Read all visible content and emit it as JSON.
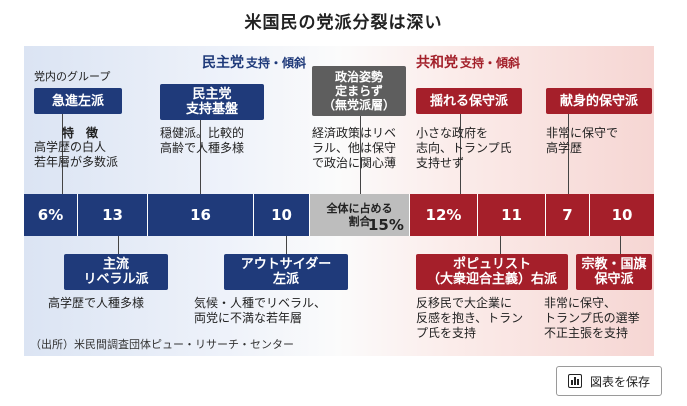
{
  "title": "米国民の党派分裂は深い",
  "parties": {
    "dem": {
      "name": "民主党",
      "sub": "支持・傾斜"
    },
    "rep": {
      "name": "共和党",
      "sub": "支持・傾斜"
    }
  },
  "group_header": "党内のグループ",
  "tokucho_label": "特　徴",
  "groups": {
    "kyushin": {
      "label": "急進左派",
      "desc": "高学歴の白人\n若年層が多数派"
    },
    "shuryu": {
      "label": "主流\nリベラル派",
      "desc": "高学歴で人種多様"
    },
    "kiban": {
      "label": "民主党\n支持基盤",
      "desc": "穏健派。比較的\n高齢で人種多様"
    },
    "outsider": {
      "label": "アウトサイダー\n左派",
      "desc": "気候・人種でリベラル、\n両党に不満な若年層"
    },
    "undecided": {
      "label": "政治姿勢\n定まらず\n（無党派層）",
      "desc": "経済政策はリベ\nラル、他は保守\nで政治に関心薄"
    },
    "yureru": {
      "label": "揺れる保守派",
      "desc": "小さな政府を\n志向、トランプ氏\n支持せず"
    },
    "populist": {
      "label": "ポピュリスト\n（大衆迎合主義）右派",
      "desc": "反移民で大企業に\n反感を抱き、トラン\nプ氏を支持"
    },
    "kenshin": {
      "label": "献身的保守派",
      "desc": "非常に保守で\n高学歴"
    },
    "shukyo": {
      "label": "宗教・国旗\n保守派",
      "desc": "非常に保守、\nトランプ氏の選挙\n不正主張を支持"
    }
  },
  "bar": {
    "kyushin": "6%",
    "shuryu": "13",
    "kiban": "16",
    "outsider": "10",
    "neutral_caption": "全体に占める\n割合",
    "neutral_value": "15%",
    "yureru": "12%",
    "populist": "11",
    "kenshin": "7",
    "shukyo": "10"
  },
  "source": "（出所）米民間調査団体ピュー・リサーチ・センター",
  "save_button": "図表を保存",
  "colors": {
    "dem": "#1f3a7a",
    "rep": "#a51f2a",
    "neutral": "#bdbdbd"
  }
}
